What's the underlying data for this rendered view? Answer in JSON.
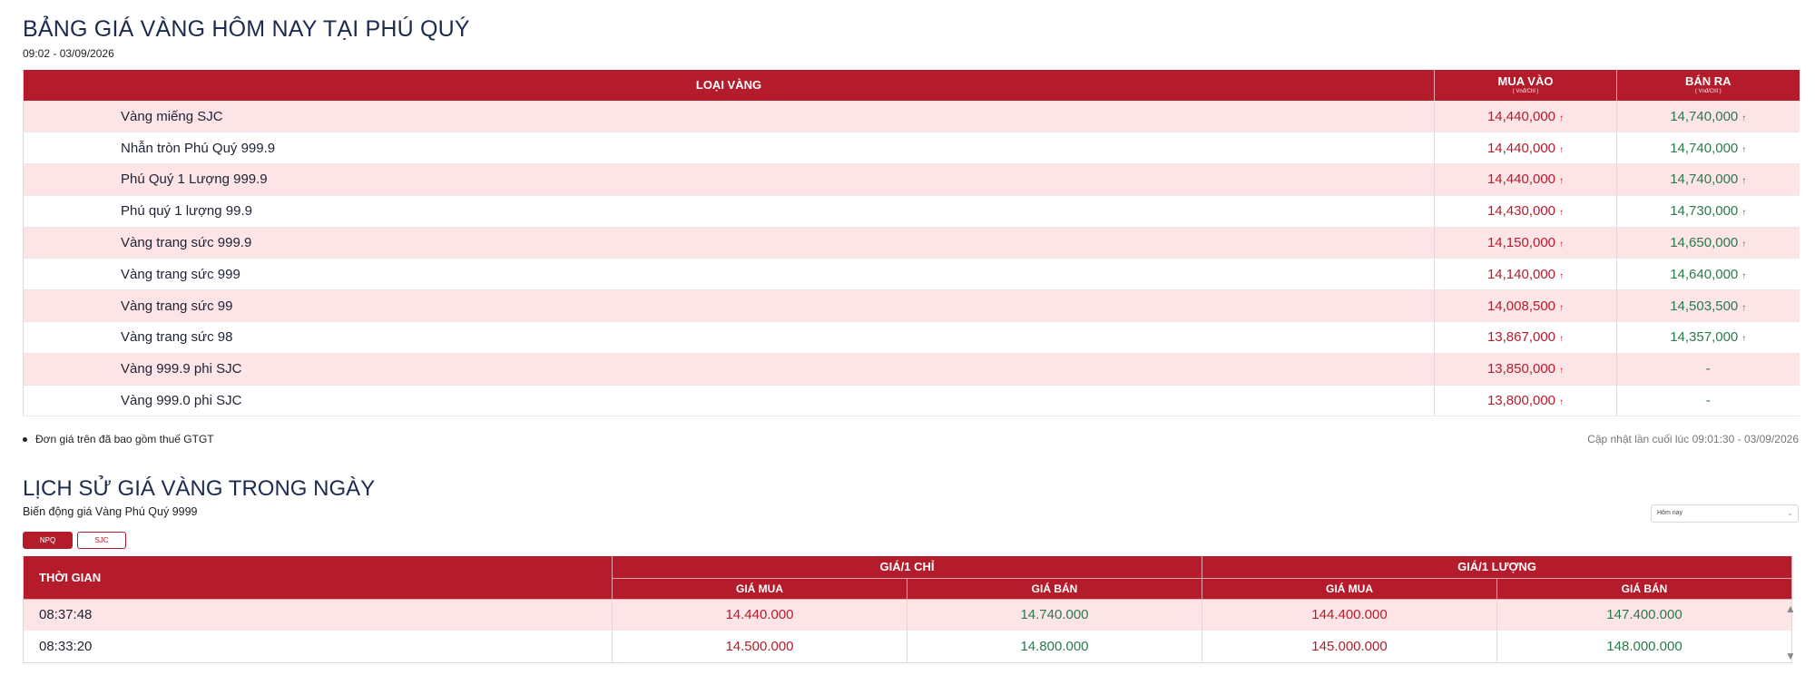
{
  "header": {
    "title": "BẢNG GIÁ VÀNG HÔM NAY TẠI PHÚ QUÝ",
    "timestamp": "09:02 - 03/09/2026"
  },
  "price_table": {
    "col_type": "LOẠI VÀNG",
    "col_buy": "MUA VÀO",
    "col_sell": "BÁN RA",
    "unit_buy": "( Vnđ/Chỉ )",
    "unit_sell": "( Vnđ/Chỉ )",
    "rows": [
      {
        "name": "Vàng miếng SJC",
        "buy": "14,440,000",
        "sell": "14,740,000"
      },
      {
        "name": "Nhẫn tròn Phú Quý 999.9",
        "buy": "14,440,000",
        "sell": "14,740,000"
      },
      {
        "name": "Phú Quý 1 Lượng 999.9",
        "buy": "14,440,000",
        "sell": "14,740,000"
      },
      {
        "name": "Phú quý 1 lượng 99.9",
        "buy": "14,430,000",
        "sell": "14,730,000"
      },
      {
        "name": "Vàng trang sức 999.9",
        "buy": "14,150,000",
        "sell": "14,650,000"
      },
      {
        "name": "Vàng trang sức 999",
        "buy": "14,140,000",
        "sell": "14,640,000"
      },
      {
        "name": "Vàng trang sức 99",
        "buy": "14,008,500",
        "sell": "14,503,500"
      },
      {
        "name": "Vàng trang sức 98",
        "buy": "13,867,000",
        "sell": "14,357,000"
      },
      {
        "name": "Vàng 999.9 phi SJC",
        "buy": "13,850,000",
        "sell": "-"
      },
      {
        "name": "Vàng 999.0 phi SJC",
        "buy": "13,800,000",
        "sell": "-"
      }
    ],
    "arrow": "↑"
  },
  "note": "Đơn giá trên đã bao gồm thuế GTGT",
  "updated": "Cập nhật lần cuối lúc 09:01:30 - 03/09/2026",
  "history": {
    "title": "LỊCH SỬ GIÁ VÀNG TRONG NGÀY",
    "subtitle": "Biến động giá Vàng Phú Quý 9999",
    "select_value": "Hôm nay",
    "tabs": [
      "NPQ",
      "SJC"
    ],
    "col_time": "THỜI GIAN",
    "group_chi": "GIÁ/1 CHỈ",
    "group_luong": "GIÁ/1 LƯỢNG",
    "col_buy": "GIÁ MUA",
    "col_sell": "GIÁ BÁN",
    "rows": [
      {
        "time": "08:37:48",
        "chi_buy": "14.440.000",
        "chi_sell": "14.740.000",
        "luong_buy": "144.400.000",
        "luong_sell": "147.400.000"
      },
      {
        "time": "08:33:20",
        "chi_buy": "14.500.000",
        "chi_sell": "14.800.000",
        "luong_buy": "145.000.000",
        "luong_sell": "148.000.000"
      }
    ]
  },
  "colors": {
    "header_red": "#b51c2b",
    "row_pink": "#fde4e6",
    "buy_red": "#b51c2b",
    "sell_green": "#2a7a4b"
  }
}
